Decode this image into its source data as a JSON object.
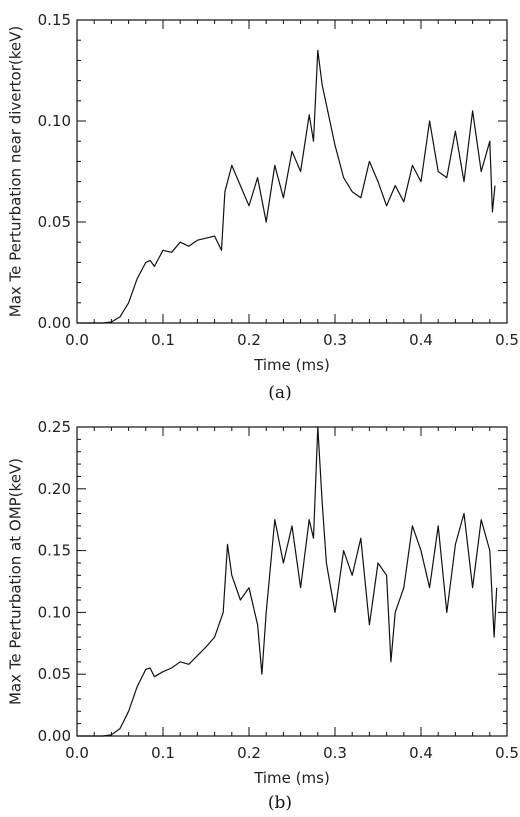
{
  "chart_data": [
    {
      "type": "line",
      "caption": "(a)",
      "xlabel": "Time (ms)",
      "ylabel": "Max Te Perturbation near divertor(keV)",
      "xlim": [
        0.0,
        0.5
      ],
      "ylim": [
        0.0,
        0.15
      ],
      "xticks": [
        "0.0",
        "0.1",
        "0.2",
        "0.3",
        "0.4",
        "0.5"
      ],
      "yticks": [
        "0.00",
        "0.05",
        "0.10",
        "0.15"
      ],
      "grid": false,
      "x": [
        0.0,
        0.03,
        0.04,
        0.05,
        0.06,
        0.07,
        0.08,
        0.085,
        0.09,
        0.1,
        0.11,
        0.12,
        0.13,
        0.14,
        0.15,
        0.16,
        0.168,
        0.172,
        0.18,
        0.19,
        0.2,
        0.21,
        0.22,
        0.23,
        0.24,
        0.25,
        0.26,
        0.27,
        0.275,
        0.28,
        0.285,
        0.29,
        0.3,
        0.31,
        0.32,
        0.33,
        0.34,
        0.35,
        0.36,
        0.37,
        0.38,
        0.39,
        0.4,
        0.41,
        0.42,
        0.43,
        0.44,
        0.45,
        0.46,
        0.47,
        0.48,
        0.483,
        0.486
      ],
      "values": [
        0.0,
        0.0,
        0.0005,
        0.003,
        0.01,
        0.022,
        0.03,
        0.031,
        0.028,
        0.036,
        0.035,
        0.04,
        0.038,
        0.041,
        0.042,
        0.043,
        0.036,
        0.065,
        0.078,
        0.068,
        0.058,
        0.072,
        0.05,
        0.078,
        0.062,
        0.085,
        0.075,
        0.103,
        0.09,
        0.135,
        0.118,
        0.108,
        0.088,
        0.072,
        0.065,
        0.062,
        0.08,
        0.07,
        0.058,
        0.068,
        0.06,
        0.078,
        0.07,
        0.1,
        0.075,
        0.072,
        0.095,
        0.07,
        0.105,
        0.075,
        0.09,
        0.055,
        0.068
      ]
    },
    {
      "type": "line",
      "caption": "(b)",
      "xlabel": "Time (ms)",
      "ylabel": "Max Te Perturbation at OMP(keV)",
      "xlim": [
        0.0,
        0.5
      ],
      "ylim": [
        0.0,
        0.25
      ],
      "xticks": [
        "0.0",
        "0.1",
        "0.2",
        "0.3",
        "0.4",
        "0.5"
      ],
      "yticks": [
        "0.00",
        "0.05",
        "0.10",
        "0.15",
        "0.20",
        "0.25"
      ],
      "grid": false,
      "x": [
        0.0,
        0.03,
        0.04,
        0.05,
        0.06,
        0.07,
        0.08,
        0.085,
        0.09,
        0.1,
        0.11,
        0.12,
        0.13,
        0.14,
        0.15,
        0.16,
        0.17,
        0.175,
        0.18,
        0.19,
        0.2,
        0.21,
        0.215,
        0.22,
        0.23,
        0.24,
        0.25,
        0.26,
        0.27,
        0.275,
        0.28,
        0.285,
        0.29,
        0.3,
        0.31,
        0.32,
        0.33,
        0.34,
        0.35,
        0.36,
        0.365,
        0.37,
        0.38,
        0.39,
        0.4,
        0.41,
        0.42,
        0.43,
        0.44,
        0.45,
        0.46,
        0.47,
        0.48,
        0.485,
        0.488
      ],
      "values": [
        0.0,
        0.0,
        0.001,
        0.006,
        0.02,
        0.04,
        0.054,
        0.055,
        0.048,
        0.052,
        0.055,
        0.06,
        0.058,
        0.065,
        0.072,
        0.08,
        0.1,
        0.155,
        0.13,
        0.11,
        0.12,
        0.09,
        0.05,
        0.1,
        0.175,
        0.14,
        0.17,
        0.12,
        0.175,
        0.16,
        0.25,
        0.19,
        0.14,
        0.1,
        0.15,
        0.13,
        0.16,
        0.09,
        0.14,
        0.13,
        0.06,
        0.1,
        0.12,
        0.17,
        0.15,
        0.12,
        0.17,
        0.1,
        0.155,
        0.18,
        0.12,
        0.175,
        0.15,
        0.08,
        0.12
      ]
    }
  ]
}
